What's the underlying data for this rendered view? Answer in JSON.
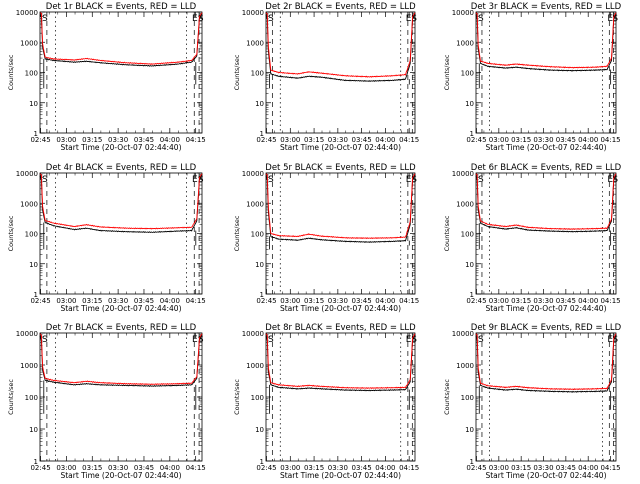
{
  "page": {
    "xlabel": "Start Time (20-Oct-07 02:44:40)",
    "ylabel": "Counts/sec"
  },
  "colors": {
    "events": "#000000",
    "lld": "#ff0000",
    "background": "#ffffff"
  },
  "chart_data": [
    {
      "type": "line",
      "title": "Det 1r BLACK = Events, RED = LLD",
      "xlabel": "Start Time (20-Oct-07 02:44:40)",
      "ylabel": "Counts/sec",
      "x_ticks": [
        "02:45",
        "03:00",
        "03:15",
        "03:30",
        "03:45",
        "04:00",
        "04:15"
      ],
      "y_ticks": [
        "1",
        "10",
        "100",
        "1000",
        "10000"
      ],
      "yscale": "log",
      "ylim": [
        1,
        10000
      ],
      "xlim_minutes": [
        0,
        94
      ],
      "markers": {
        "left": "S",
        "right": [
          "E",
          "S"
        ]
      },
      "series": [
        {
          "name": "Events",
          "x_minutes": [
            0,
            0.8,
            1.5,
            3,
            8,
            20,
            27,
            35,
            50,
            65,
            80,
            88,
            91,
            92.5,
            94
          ],
          "values": [
            8000,
            7000,
            700,
            280,
            250,
            220,
            235,
            210,
            180,
            165,
            190,
            220,
            350,
            6000,
            9000
          ]
        },
        {
          "name": "LLD",
          "x_minutes": [
            0,
            0.8,
            1.5,
            3,
            8,
            20,
            27,
            35,
            50,
            65,
            80,
            88,
            91,
            92.5,
            94
          ],
          "values": [
            9500,
            9000,
            900,
            320,
            280,
            260,
            290,
            250,
            210,
            190,
            220,
            250,
            400,
            7000,
            9500
          ]
        }
      ]
    },
    {
      "type": "line",
      "title": "Det 2r BLACK = Events, RED = LLD",
      "xlabel": "Start Time (20-Oct-07 02:44:40)",
      "ylabel": "Counts/sec",
      "x_ticks": [
        "02:45",
        "03:00",
        "03:15",
        "03:30",
        "03:45",
        "04:00",
        "04:15"
      ],
      "y_ticks": [
        "1",
        "10",
        "100",
        "1000",
        "10000"
      ],
      "yscale": "log",
      "ylim": [
        1,
        10000
      ],
      "xlim_minutes": [
        0,
        94
      ],
      "markers": {
        "left": "S",
        "right": [
          "E",
          "S"
        ]
      },
      "series": [
        {
          "name": "Events",
          "x_minutes": [
            0,
            0.8,
            1.5,
            3,
            8,
            20,
            27,
            35,
            50,
            65,
            80,
            88,
            91,
            92.5,
            94
          ],
          "values": [
            8000,
            6000,
            500,
            90,
            75,
            65,
            75,
            70,
            55,
            52,
            55,
            60,
            200,
            6000,
            9000
          ]
        },
        {
          "name": "LLD",
          "x_minutes": [
            0,
            0.8,
            1.5,
            3,
            8,
            20,
            27,
            35,
            50,
            65,
            80,
            88,
            91,
            92.5,
            94
          ],
          "values": [
            9500,
            8500,
            700,
            120,
            100,
            90,
            105,
            95,
            78,
            72,
            78,
            85,
            250,
            7000,
            9500
          ]
        }
      ]
    },
    {
      "type": "line",
      "title": "Det 3r BLACK = Events, RED = LLD",
      "xlabel": "Start Time (20-Oct-07 02:44:40)",
      "ylabel": "Counts/sec",
      "x_ticks": [
        "02:45",
        "03:00",
        "03:15",
        "03:30",
        "03:45",
        "04:00",
        "04:15"
      ],
      "y_ticks": [
        "1",
        "10",
        "100",
        "1000",
        "10000"
      ],
      "yscale": "log",
      "ylim": [
        1,
        10000
      ],
      "xlim_minutes": [
        0,
        94
      ],
      "markers": {
        "left": "S",
        "right": [
          "E",
          "S"
        ]
      },
      "series": [
        {
          "name": "Events",
          "x_minutes": [
            0,
            0.8,
            1.5,
            3,
            8,
            20,
            27,
            35,
            50,
            65,
            80,
            88,
            91,
            92.5,
            94
          ],
          "values": [
            8000,
            6000,
            600,
            200,
            160,
            140,
            150,
            135,
            120,
            115,
            120,
            125,
            250,
            6000,
            9000
          ]
        },
        {
          "name": "LLD",
          "x_minutes": [
            0,
            0.8,
            1.5,
            3,
            8,
            20,
            27,
            35,
            50,
            65,
            80,
            88,
            91,
            92.5,
            94
          ],
          "values": [
            9500,
            8500,
            800,
            240,
            200,
            175,
            190,
            175,
            155,
            145,
            150,
            160,
            300,
            7000,
            9500
          ]
        }
      ]
    },
    {
      "type": "line",
      "title": "Det 4r BLACK = Events, RED = LLD",
      "xlabel": "Start Time (20-Oct-07 02:44:40)",
      "ylabel": "Counts/sec",
      "x_ticks": [
        "02:45",
        "03:00",
        "03:15",
        "03:30",
        "03:45",
        "04:00",
        "04:15"
      ],
      "y_ticks": [
        "1",
        "10",
        "100",
        "1000",
        "10000"
      ],
      "yscale": "log",
      "ylim": [
        1,
        10000
      ],
      "xlim_minutes": [
        0,
        94
      ],
      "markers": {
        "left": "S",
        "right": [
          "E",
          "S"
        ]
      },
      "series": [
        {
          "name": "Events",
          "x_minutes": [
            0,
            0.8,
            1.5,
            3,
            8,
            20,
            27,
            35,
            50,
            65,
            80,
            88,
            91,
            92.5,
            94
          ],
          "values": [
            8000,
            6000,
            600,
            230,
            180,
            135,
            150,
            125,
            115,
            110,
            120,
            125,
            260,
            6000,
            9000
          ]
        },
        {
          "name": "LLD",
          "x_minutes": [
            0,
            0.8,
            1.5,
            3,
            8,
            20,
            27,
            35,
            50,
            65,
            80,
            88,
            91,
            92.5,
            94
          ],
          "values": [
            9500,
            8500,
            800,
            270,
            220,
            170,
            195,
            165,
            150,
            145,
            155,
            160,
            310,
            7000,
            9500
          ]
        }
      ]
    },
    {
      "type": "line",
      "title": "Det 5r BLACK = Events, RED = LLD",
      "xlabel": "Start Time (20-Oct-07 02:44:40)",
      "ylabel": "Counts/sec",
      "x_ticks": [
        "02:45",
        "03:00",
        "03:15",
        "03:30",
        "03:45",
        "04:00",
        "04:15"
      ],
      "y_ticks": [
        "1",
        "10",
        "100",
        "1000",
        "10000"
      ],
      "yscale": "log",
      "ylim": [
        1,
        10000
      ],
      "xlim_minutes": [
        0,
        94
      ],
      "markers": {
        "left": "S",
        "right": [
          "E",
          "S"
        ]
      },
      "series": [
        {
          "name": "Events",
          "x_minutes": [
            0,
            0.8,
            1.5,
            3,
            8,
            20,
            27,
            35,
            50,
            65,
            80,
            88,
            91,
            92.5,
            94
          ],
          "values": [
            8000,
            6000,
            500,
            80,
            65,
            60,
            70,
            62,
            55,
            52,
            55,
            58,
            200,
            6000,
            9000
          ]
        },
        {
          "name": "LLD",
          "x_minutes": [
            0,
            0.8,
            1.5,
            3,
            8,
            20,
            27,
            35,
            50,
            65,
            80,
            88,
            91,
            92.5,
            94
          ],
          "values": [
            9500,
            8500,
            700,
            100,
            85,
            80,
            95,
            82,
            72,
            70,
            72,
            76,
            250,
            7000,
            9500
          ]
        }
      ]
    },
    {
      "type": "line",
      "title": "Det 6r BLACK = Events, RED = LLD",
      "xlabel": "Start Time (20-Oct-07 02:44:40)",
      "ylabel": "Counts/sec",
      "x_ticks": [
        "02:45",
        "03:00",
        "03:15",
        "03:30",
        "03:45",
        "04:00",
        "04:15"
      ],
      "y_ticks": [
        "1",
        "10",
        "100",
        "1000",
        "10000"
      ],
      "yscale": "log",
      "ylim": [
        1,
        10000
      ],
      "xlim_minutes": [
        0,
        94
      ],
      "markers": {
        "left": "S",
        "right": [
          "E",
          "S"
        ]
      },
      "series": [
        {
          "name": "Events",
          "x_minutes": [
            0,
            0.8,
            1.5,
            3,
            8,
            20,
            27,
            35,
            50,
            65,
            80,
            88,
            91,
            92.5,
            94
          ],
          "values": [
            8000,
            6000,
            600,
            220,
            170,
            140,
            155,
            130,
            120,
            115,
            120,
            125,
            260,
            6000,
            9000
          ]
        },
        {
          "name": "LLD",
          "x_minutes": [
            0,
            0.8,
            1.5,
            3,
            8,
            20,
            27,
            35,
            50,
            65,
            80,
            88,
            91,
            92.5,
            94
          ],
          "values": [
            9500,
            8500,
            800,
            260,
            200,
            170,
            190,
            160,
            145,
            140,
            145,
            150,
            300,
            7000,
            9500
          ]
        }
      ]
    },
    {
      "type": "line",
      "title": "Det 7r BLACK = Events, RED = LLD",
      "xlabel": "Start Time (20-Oct-07 02:44:40)",
      "ylabel": "Counts/sec",
      "x_ticks": [
        "02:45",
        "03:00",
        "03:15",
        "03:30",
        "03:45",
        "04:00",
        "04:15"
      ],
      "y_ticks": [
        "1",
        "10",
        "100",
        "1000",
        "10000"
      ],
      "yscale": "log",
      "ylim": [
        1,
        10000
      ],
      "xlim_minutes": [
        0,
        94
      ],
      "markers": {
        "left": "S",
        "right": [
          "E",
          "S"
        ]
      },
      "series": [
        {
          "name": "Events",
          "x_minutes": [
            0,
            0.8,
            1.5,
            3,
            8,
            20,
            27,
            35,
            50,
            65,
            80,
            88,
            91,
            92.5,
            94
          ],
          "values": [
            8000,
            6000,
            700,
            330,
            290,
            240,
            260,
            240,
            230,
            220,
            230,
            240,
            380,
            6000,
            9000
          ]
        },
        {
          "name": "LLD",
          "x_minutes": [
            0,
            0.8,
            1.5,
            3,
            8,
            20,
            27,
            35,
            50,
            65,
            80,
            88,
            91,
            92.5,
            94
          ],
          "values": [
            9500,
            8500,
            900,
            380,
            330,
            280,
            310,
            280,
            260,
            250,
            260,
            270,
            430,
            7000,
            9500
          ]
        }
      ]
    },
    {
      "type": "line",
      "title": "Det 8r BLACK = Events, RED = LLD",
      "xlabel": "Start Time (20-Oct-07 02:44:40)",
      "ylabel": "Counts/sec",
      "x_ticks": [
        "02:45",
        "03:00",
        "03:15",
        "03:30",
        "03:45",
        "04:00",
        "04:15"
      ],
      "y_ticks": [
        "1",
        "10",
        "100",
        "1000",
        "10000"
      ],
      "yscale": "log",
      "ylim": [
        1,
        10000
      ],
      "xlim_minutes": [
        0,
        94
      ],
      "markers": {
        "left": "S",
        "right": [
          "E",
          "S"
        ]
      },
      "series": [
        {
          "name": "Events",
          "x_minutes": [
            0,
            0.8,
            1.5,
            3,
            8,
            20,
            27,
            35,
            50,
            65,
            80,
            88,
            91,
            92.5,
            94
          ],
          "values": [
            8000,
            6000,
            600,
            240,
            200,
            180,
            190,
            180,
            165,
            160,
            165,
            170,
            300,
            6000,
            9000
          ]
        },
        {
          "name": "LLD",
          "x_minutes": [
            0,
            0.8,
            1.5,
            3,
            8,
            20,
            27,
            35,
            50,
            65,
            80,
            88,
            91,
            92.5,
            94
          ],
          "values": [
            9500,
            8500,
            800,
            280,
            240,
            215,
            230,
            215,
            195,
            190,
            195,
            200,
            350,
            7000,
            9500
          ]
        }
      ]
    },
    {
      "type": "line",
      "title": "Det 9r BLACK = Events, RED = LLD",
      "xlabel": "Start Time (20-Oct-07 02:44:40)",
      "ylabel": "Counts/sec",
      "x_ticks": [
        "02:45",
        "03:00",
        "03:15",
        "03:30",
        "03:45",
        "04:00",
        "04:15"
      ],
      "y_ticks": [
        "1",
        "10",
        "100",
        "1000",
        "10000"
      ],
      "yscale": "log",
      "ylim": [
        1,
        10000
      ],
      "xlim_minutes": [
        0,
        94
      ],
      "markers": {
        "left": "S",
        "right": [
          "E",
          "S"
        ]
      },
      "series": [
        {
          "name": "Events",
          "x_minutes": [
            0,
            0.8,
            1.5,
            3,
            8,
            20,
            27,
            35,
            50,
            65,
            80,
            88,
            91,
            92.5,
            94
          ],
          "values": [
            8000,
            6000,
            600,
            230,
            190,
            165,
            175,
            160,
            150,
            145,
            150,
            155,
            300,
            6000,
            9000
          ]
        },
        {
          "name": "LLD",
          "x_minutes": [
            0,
            0.8,
            1.5,
            3,
            8,
            20,
            27,
            35,
            50,
            65,
            80,
            88,
            91,
            92.5,
            94
          ],
          "values": [
            9500,
            8500,
            800,
            270,
            225,
            200,
            215,
            195,
            180,
            175,
            180,
            185,
            350,
            7000,
            9500
          ]
        }
      ]
    }
  ]
}
